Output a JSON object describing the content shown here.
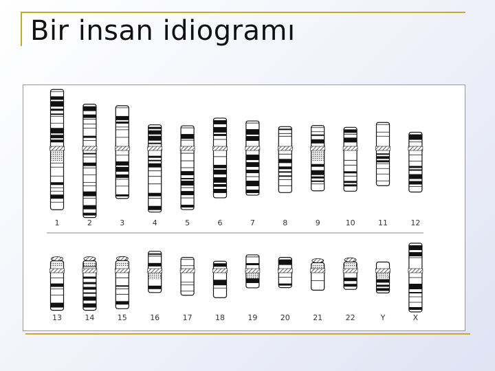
{
  "title": "Bir insan idiogramı",
  "figure": {
    "row1": [
      {
        "label": "1",
        "len": 175,
        "cen": 0.49,
        "sat": false,
        "het": true
      },
      {
        "label": "2",
        "len": 165,
        "cen": 0.39,
        "sat": false,
        "het": false
      },
      {
        "label": "3",
        "len": 135,
        "cen": 0.46,
        "sat": false,
        "het": false
      },
      {
        "label": "4",
        "len": 127,
        "cen": 0.27,
        "sat": false,
        "het": false
      },
      {
        "label": "5",
        "len": 122,
        "cen": 0.27,
        "sat": false,
        "het": false
      },
      {
        "label": "6",
        "len": 116,
        "cen": 0.38,
        "sat": false,
        "het": false
      },
      {
        "label": "7",
        "len": 108,
        "cen": 0.37,
        "sat": false,
        "het": false
      },
      {
        "label": "8",
        "len": 96,
        "cen": 0.33,
        "sat": false,
        "het": false
      },
      {
        "label": "9",
        "len": 95,
        "cen": 0.35,
        "sat": false,
        "het": true
      },
      {
        "label": "10",
        "len": 93,
        "cen": 0.33,
        "sat": false,
        "het": false
      },
      {
        "label": "11",
        "len": 92,
        "cen": 0.41,
        "sat": false,
        "het": false
      },
      {
        "label": "12",
        "len": 87,
        "cen": 0.27,
        "sat": false,
        "het": false
      }
    ],
    "row2": [
      {
        "label": "13",
        "len": 72,
        "cen": 0.2,
        "sat": true,
        "het": false
      },
      {
        "label": "14",
        "len": 72,
        "cen": 0.2,
        "sat": true,
        "het": false
      },
      {
        "label": "15",
        "len": 70,
        "cen": 0.21,
        "sat": true,
        "het": false
      },
      {
        "label": "16",
        "len": 60,
        "cen": 0.47,
        "sat": false,
        "het": true
      },
      {
        "label": "17",
        "len": 55,
        "cen": 0.35,
        "sat": false,
        "het": false
      },
      {
        "label": "18",
        "len": 53,
        "cen": 0.26,
        "sat": false,
        "het": false
      },
      {
        "label": "19",
        "len": 48,
        "cen": 0.48,
        "sat": false,
        "het": true
      },
      {
        "label": "20",
        "len": 44,
        "cen": 0.44,
        "sat": false,
        "het": false
      },
      {
        "label": "21",
        "len": 40,
        "cen": 0.29,
        "sat": true,
        "het": false
      },
      {
        "label": "22",
        "len": 40,
        "cen": 0.32,
        "sat": true,
        "het": false
      },
      {
        "label": "Y",
        "len": 45,
        "cen": 0.28,
        "sat": false,
        "het": true
      },
      {
        "label": "X",
        "len": 100,
        "cen": 0.4,
        "sat": false,
        "het": false
      }
    ]
  }
}
